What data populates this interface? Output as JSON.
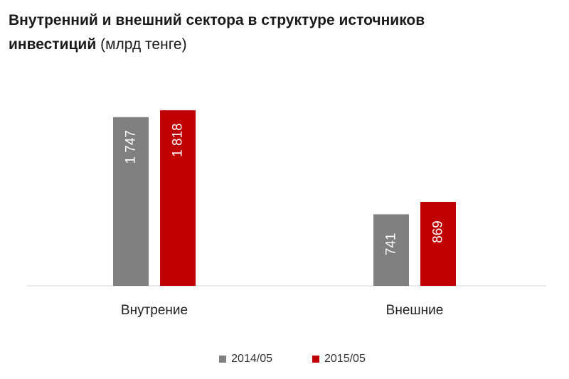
{
  "chart_data": {
    "type": "bar",
    "title": "Внутренний  и внешний  сектора  в структуре источников  инвестиций",
    "title_unit": "(млрд тенге)",
    "categories": [
      "Внутрение",
      "Внешние"
    ],
    "series": [
      {
        "name": "2014/05",
        "color": "#808080",
        "values": [
          1747,
          741
        ],
        "labels": [
          "1 747",
          "741"
        ]
      },
      {
        "name": "2015/05",
        "color": "#c00000",
        "values": [
          1818,
          869
        ],
        "labels": [
          "1 818",
          "869"
        ]
      }
    ],
    "ylim": [
      0,
      2000
    ],
    "grid": false,
    "legend_position": "bottom"
  }
}
